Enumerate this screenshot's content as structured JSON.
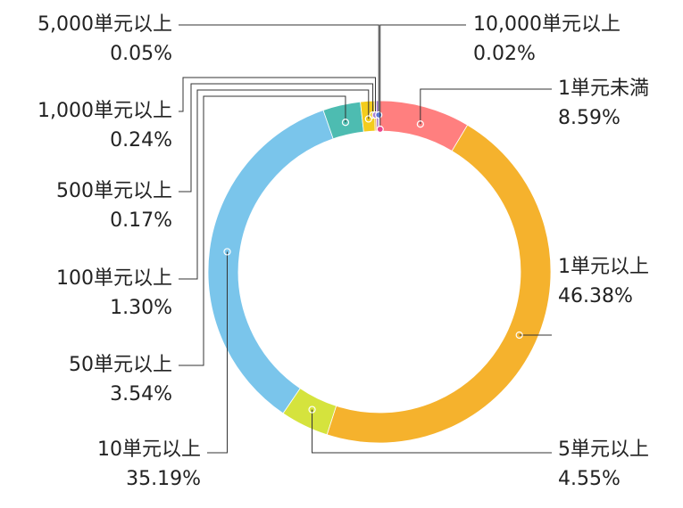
{
  "chart_data": {
    "type": "donut",
    "categories": [
      "1単元未満",
      "1単元以上",
      "5単元以上",
      "10単元以上",
      "50単元以上",
      "100単元以上",
      "500単元以上",
      "1,000単元以上",
      "5,000単元以上",
      "10,000単元以上"
    ],
    "values": [
      8.59,
      46.38,
      4.55,
      35.19,
      3.54,
      1.3,
      0.17,
      0.24,
      0.05,
      0.02
    ],
    "value_labels": [
      "8.59%",
      "46.38%",
      "4.55%",
      "35.19%",
      "3.54%",
      "1.30%",
      "0.17%",
      "0.24%",
      "0.05%",
      "0.02%"
    ],
    "colors": [
      "#ff7f7f",
      "#f5b22d",
      "#d5e33d",
      "#7ac5eb",
      "#4dbcb1",
      "#f3cc1d",
      "#e8a33a",
      "#a982d3",
      "#5b7bd6",
      "#e8438f"
    ]
  }
}
